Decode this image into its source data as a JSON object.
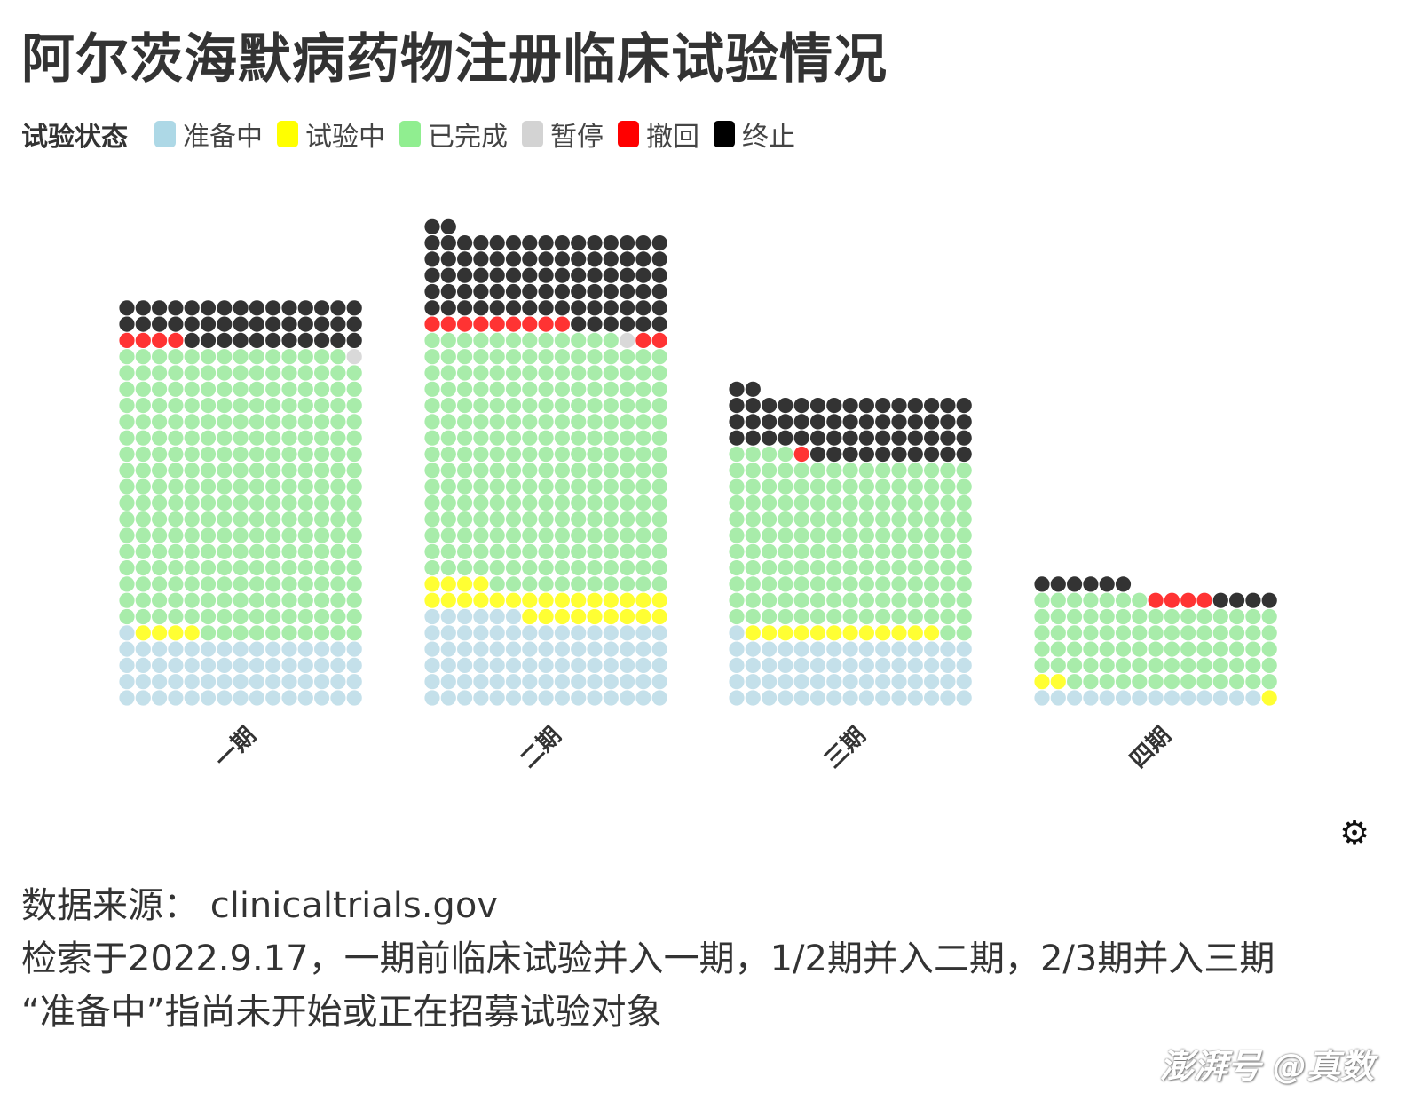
{
  "title": "阿尔茨海默病药物注册临床试验情况",
  "legend": {
    "title": "试验状态",
    "items": [
      {
        "label": "准备中",
        "color": "#add8e6"
      },
      {
        "label": "试验中",
        "color": "#ffff00"
      },
      {
        "label": "已完成",
        "color": "#90ee90"
      },
      {
        "label": "暂停",
        "color": "#d3d3d3"
      },
      {
        "label": "撤回",
        "color": "#ff0000"
      },
      {
        "label": "终止",
        "color": "#000000"
      }
    ]
  },
  "chart_data": {
    "type": "waffle",
    "categories": [
      "一期",
      "二期",
      "三期",
      "四期"
    ],
    "series": [
      {
        "name": "准备中",
        "values": [
          61,
          81,
          61,
          14
        ]
      },
      {
        "name": "试验中",
        "values": [
          4,
          28,
          12,
          3
        ]
      },
      {
        "name": "已完成",
        "values": [
          264,
          233,
          156,
          80
        ]
      },
      {
        "name": "暂停",
        "values": [
          1,
          1,
          0,
          0
        ]
      },
      {
        "name": "撤回",
        "values": [
          4,
          11,
          1,
          4
        ]
      },
      {
        "name": "终止",
        "values": [
          41,
          83,
          57,
          10
        ]
      }
    ],
    "columns": 15
  },
  "footer": {
    "line1": "数据来源： clinicaltrials.gov",
    "line2": "检索于2022.9.17，一期前临床试验并入一期，1/2期并入二期，2/3期并入三期",
    "line3": "“准备中”指尚未开始或正在招募试验对象"
  },
  "watermark": "澎湃号 @真数",
  "settings_icon": "gear-icon"
}
